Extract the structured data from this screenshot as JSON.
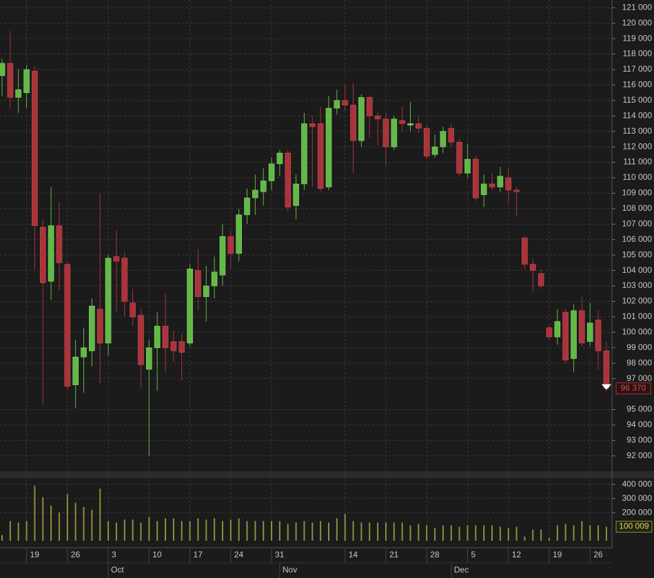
{
  "chart_data": {
    "type": "candlestick",
    "categories": [
      null,
      null,
      null,
      "19",
      null,
      null,
      null,
      null,
      "26",
      null,
      null,
      null,
      null,
      "3",
      null,
      null,
      null,
      null,
      "10",
      null,
      null,
      null,
      null,
      "17",
      null,
      null,
      null,
      null,
      "24",
      null,
      null,
      null,
      null,
      "31",
      null,
      null,
      null,
      null,
      null,
      null,
      null,
      null,
      "14",
      null,
      null,
      null,
      null,
      "21",
      null,
      null,
      null,
      null,
      "28",
      null,
      null,
      null,
      null,
      "5",
      null,
      null,
      null,
      null,
      "12",
      null,
      null,
      null,
      null,
      "19",
      null,
      null,
      null,
      null,
      "26",
      null,
      null
    ],
    "months": [
      null,
      null,
      null,
      null,
      null,
      null,
      null,
      null,
      null,
      null,
      null,
      null,
      null,
      "Oct",
      null,
      null,
      null,
      null,
      null,
      null,
      null,
      null,
      null,
      null,
      null,
      null,
      null,
      null,
      null,
      null,
      null,
      null,
      null,
      null,
      "Nov",
      null,
      null,
      null,
      null,
      null,
      null,
      null,
      null,
      null,
      null,
      null,
      null,
      null,
      null,
      null,
      null,
      null,
      null,
      null,
      null,
      "Dec",
      null,
      null,
      null,
      null,
      null,
      null,
      null,
      null,
      null,
      null,
      null,
      null,
      null,
      null,
      null,
      null,
      null,
      null,
      null
    ],
    "open": [
      116600,
      117400,
      115200,
      115500,
      116900,
      106800,
      103300,
      106900,
      104400,
      96600,
      98400,
      98800,
      101500,
      99300,
      104900,
      104800,
      101900,
      101100,
      97600,
      99000,
      100400,
      99400,
      99400,
      99300,
      104000,
      102300,
      103000,
      103700,
      106200,
      105100,
      107600,
      108700,
      109100,
      109800,
      110900,
      111600,
      108200,
      109600,
      113500,
      113500,
      109400,
      114500,
      115000,
      114700,
      112400,
      115200,
      114000,
      113800,
      112000,
      113700,
      113400,
      113500,
      113200,
      111500,
      112000,
      113200,
      112300,
      110300,
      111200,
      108900,
      109600,
      109400,
      110000,
      109200,
      106100,
      104400,
      103800,
      100300,
      99700,
      101300,
      98300,
      101400,
      99400,
      100800,
      98800
    ],
    "high": [
      117700,
      119500,
      117000,
      117300,
      117200,
      107300,
      109400,
      108400,
      104500,
      99500,
      100300,
      102200,
      109000,
      105000,
      106600,
      105200,
      102800,
      101500,
      99500,
      101300,
      102500,
      100100,
      99900,
      104400,
      105400,
      104300,
      104900,
      107000,
      106600,
      108000,
      109300,
      110200,
      110600,
      111300,
      111800,
      111800,
      110200,
      114200,
      114000,
      114600,
      115300,
      115700,
      116000,
      116100,
      115400,
      115300,
      114200,
      114200,
      114000,
      114600,
      114900,
      114000,
      113400,
      112800,
      113300,
      113500,
      112500,
      112200,
      111400,
      110200,
      110300,
      110700,
      110600,
      109400,
      106200,
      104800,
      104100,
      100500,
      101500,
      101500,
      101800,
      102300,
      101900,
      101400,
      99400
    ],
    "low": [
      115300,
      114500,
      114200,
      114500,
      104100,
      95300,
      102100,
      102700,
      96300,
      95100,
      96100,
      97800,
      96700,
      98500,
      101300,
      101000,
      100400,
      96400,
      92000,
      96200,
      97400,
      98100,
      96900,
      99100,
      101400,
      100700,
      102200,
      103000,
      104100,
      104600,
      107000,
      107600,
      108200,
      109200,
      110100,
      107800,
      107300,
      109200,
      109400,
      109100,
      109200,
      114100,
      114300,
      110300,
      112000,
      112600,
      112100,
      110800,
      111800,
      113000,
      113000,
      112900,
      111200,
      111300,
      111600,
      112000,
      110100,
      110000,
      108500,
      108100,
      109200,
      109100,
      108400,
      107500,
      104100,
      102600,
      102800,
      99500,
      99200,
      98000,
      97400,
      99100,
      99100,
      97600,
      96200
    ],
    "close": [
      117400,
      115200,
      115700,
      117000,
      106900,
      103200,
      106900,
      104500,
      96500,
      98400,
      99000,
      101700,
      99300,
      104800,
      104600,
      102000,
      101000,
      97900,
      99000,
      100400,
      99000,
      98800,
      98700,
      104100,
      102300,
      103000,
      103900,
      106200,
      105100,
      107600,
      108700,
      109200,
      109800,
      110900,
      111600,
      108100,
      109600,
      113500,
      113300,
      109300,
      114500,
      115000,
      114700,
      112400,
      115200,
      114000,
      113800,
      112000,
      113800,
      113500,
      113500,
      113200,
      111400,
      112000,
      113000,
      112300,
      110300,
      111200,
      108700,
      109600,
      109400,
      110100,
      109200,
      109100,
      104400,
      104000,
      103000,
      99700,
      100700,
      98200,
      101400,
      99300,
      100600,
      98800,
      96370
    ],
    "close_last_label": "96 370",
    "volume": [
      40000,
      140000,
      130000,
      140000,
      390000,
      310000,
      250000,
      200000,
      330000,
      270000,
      240000,
      220000,
      370000,
      140000,
      130000,
      150000,
      150000,
      130000,
      170000,
      140000,
      160000,
      160000,
      140000,
      140000,
      160000,
      150000,
      160000,
      140000,
      150000,
      160000,
      140000,
      140000,
      140000,
      140000,
      140000,
      120000,
      130000,
      140000,
      130000,
      140000,
      130000,
      160000,
      190000,
      140000,
      130000,
      130000,
      130000,
      130000,
      130000,
      130000,
      110000,
      120000,
      110000,
      90000,
      110000,
      110000,
      100000,
      110000,
      110000,
      110000,
      110000,
      100000,
      90000,
      100000,
      30000,
      80000,
      80000,
      20000,
      110000,
      120000,
      110000,
      140000,
      110000,
      110000,
      100009
    ],
    "volume_last_label": "100 009",
    "up_color": "#63b947",
    "down_color": "#a9343b",
    "volume_color": "#8f8f3a",
    "grid": true,
    "ylim": [
      91100,
      121500
    ],
    "yticks": [
      {
        "value": 92000,
        "label": "92 000"
      },
      {
        "value": 93000,
        "label": "93 000"
      },
      {
        "value": 94000,
        "label": "94 000"
      },
      {
        "value": 95000,
        "label": "95 000"
      },
      {
        "value": 97000,
        "label": "97 000"
      },
      {
        "value": 98000,
        "label": "98 000"
      },
      {
        "value": 99000,
        "label": "99 000"
      },
      {
        "value": 100000,
        "label": "100 000"
      },
      {
        "value": 101000,
        "label": "101 000"
      },
      {
        "value": 102000,
        "label": "102 000"
      },
      {
        "value": 103000,
        "label": "103 000"
      },
      {
        "value": 104000,
        "label": "104 000"
      },
      {
        "value": 105000,
        "label": "105 000"
      },
      {
        "value": 106000,
        "label": "106 000"
      },
      {
        "value": 107000,
        "label": "107 000"
      },
      {
        "value": 108000,
        "label": "108 000"
      },
      {
        "value": 109000,
        "label": "109 000"
      },
      {
        "value": 110000,
        "label": "110 000"
      },
      {
        "value": 111000,
        "label": "111 000"
      },
      {
        "value": 112000,
        "label": "112 000"
      },
      {
        "value": 113000,
        "label": "113 000"
      },
      {
        "value": 114000,
        "label": "114 000"
      },
      {
        "value": 115000,
        "label": "115 000"
      },
      {
        "value": 116000,
        "label": "116 000"
      },
      {
        "value": 117000,
        "label": "117 000"
      },
      {
        "value": 118000,
        "label": "118 000"
      },
      {
        "value": 119000,
        "label": "119 000"
      },
      {
        "value": 120000,
        "label": "120 000"
      },
      {
        "value": 121000,
        "label": "121 000"
      }
    ],
    "y2lim": [
      0,
      440000
    ],
    "y2ticks": [
      {
        "value": 200000,
        "label": "200 000"
      },
      {
        "value": 300000,
        "label": "300 000"
      },
      {
        "value": 400000,
        "label": "400 000"
      }
    ]
  }
}
